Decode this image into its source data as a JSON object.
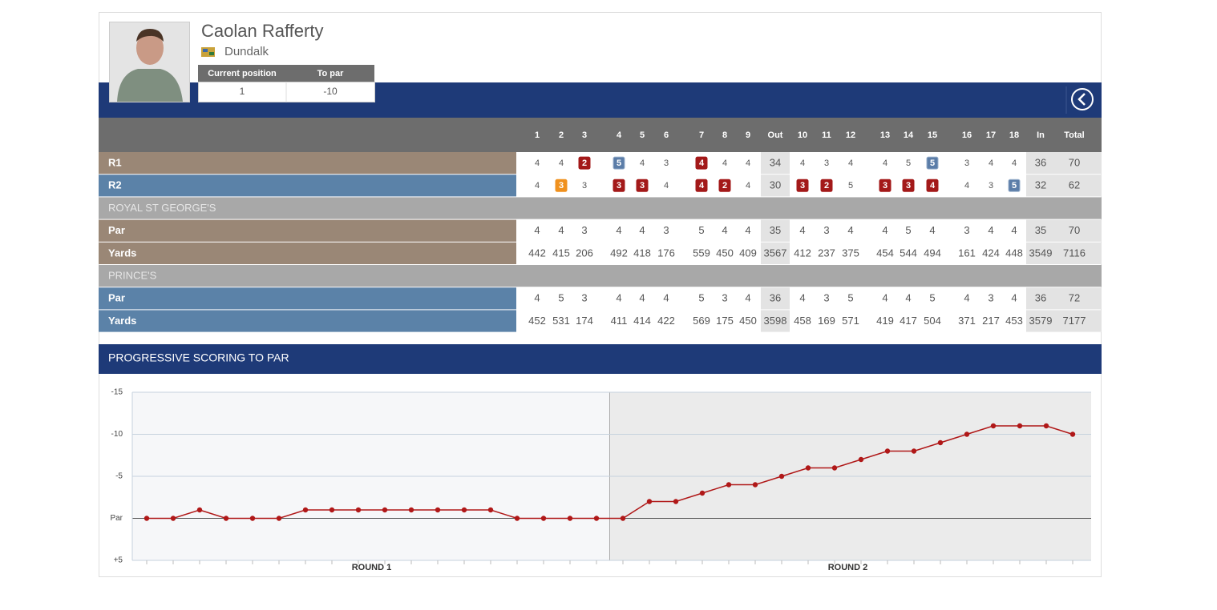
{
  "player": {
    "name": "Caolan Rafferty",
    "club": "Dundalk",
    "stats_headers": [
      "Current position",
      "To par"
    ],
    "stats": [
      "1",
      "-10"
    ]
  },
  "scorecard": {
    "columns": [
      "1",
      "2",
      "3",
      "4",
      "5",
      "6",
      "7",
      "8",
      "9",
      "Out",
      "10",
      "11",
      "12",
      "13",
      "14",
      "15",
      "16",
      "17",
      "18",
      "In",
      "Total"
    ],
    "rounds": [
      {
        "label": "R1",
        "scores": [
          4,
          4,
          2,
          5,
          4,
          3,
          4,
          4,
          4,
          34,
          4,
          3,
          4,
          4,
          5,
          5,
          3,
          4,
          4,
          36,
          70
        ]
      },
      {
        "label": "R2",
        "scores": [
          4,
          3,
          3,
          3,
          3,
          4,
          4,
          2,
          4,
          30,
          3,
          2,
          5,
          3,
          3,
          4,
          4,
          3,
          5,
          32,
          62
        ]
      }
    ],
    "courses": [
      {
        "name": "ROYAL ST GEORGE'S",
        "rows": [
          {
            "label": "Par",
            "values": [
              4,
              4,
              3,
              4,
              4,
              3,
              5,
              4,
              4,
              35,
              4,
              3,
              4,
              4,
              5,
              4,
              3,
              4,
              4,
              35,
              70
            ]
          },
          {
            "label": "Yards",
            "values": [
              442,
              415,
              206,
              492,
              418,
              176,
              559,
              450,
              409,
              3567,
              412,
              237,
              375,
              454,
              544,
              494,
              161,
              424,
              448,
              3549,
              7116
            ]
          }
        ]
      },
      {
        "name": "PRINCE'S",
        "rows": [
          {
            "label": "Par",
            "values": [
              4,
              5,
              3,
              4,
              4,
              4,
              5,
              3,
              4,
              36,
              4,
              3,
              5,
              4,
              4,
              5,
              4,
              3,
              4,
              36,
              72
            ]
          },
          {
            "label": "Yards",
            "values": [
              452,
              531,
              174,
              411,
              414,
              422,
              569,
              175,
              450,
              3598,
              458,
              169,
              571,
              419,
              417,
              504,
              371,
              217,
              453,
              3579,
              7177
            ]
          }
        ]
      }
    ]
  },
  "chart_data": {
    "type": "line",
    "title": "PROGRESSIVE SCORING TO PAR",
    "group_labels": [
      "ROUND 1",
      "ROUND 2"
    ],
    "values": [
      0,
      0,
      -1,
      0,
      0,
      0,
      -1,
      -1,
      -1,
      -1,
      -1,
      -1,
      -1,
      -1,
      0,
      0,
      0,
      0,
      0,
      -2,
      -2,
      -3,
      -4,
      -4,
      -5,
      -6,
      -6,
      -7,
      -8,
      -8,
      -9,
      -10,
      -11,
      -11,
      -11,
      -10
    ],
    "color": "#b01818",
    "ylim": [
      5,
      -15
    ],
    "yticks": [
      -15,
      -10,
      -5,
      {
        "value": 0,
        "label": "Par"
      },
      {
        "value": 5,
        "label": "+5"
      }
    ],
    "grid": true
  }
}
